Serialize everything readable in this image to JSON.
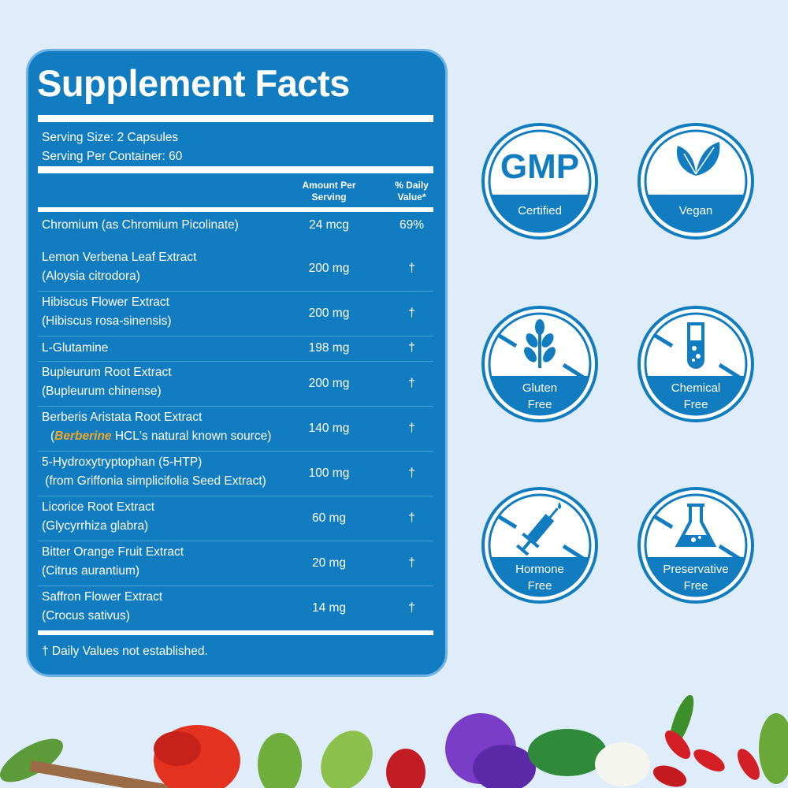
{
  "title": "Supplement Facts",
  "serving_size": "Serving Size: 2 Capsules",
  "servings_per_container": "Serving Per Container: 60",
  "headers": {
    "amount_line1": "Amount Per",
    "amount_line2": "Serving",
    "dv_line1": "% Daily",
    "dv_line2": "Value*"
  },
  "rows": [
    {
      "name": "Chromium (as Chromium Picolinate)",
      "amount": "24 mcg",
      "dv": "69%"
    },
    {
      "name": "Lemon Verbena Leaf Extract",
      "sub": "(Aloysia citrodora)",
      "amount": "200 mg",
      "dv": "†"
    },
    {
      "name": "Hibiscus Flower Extract",
      "sub": "(Hibiscus rosa-sinensis)",
      "amount": "200 mg",
      "dv": "†"
    },
    {
      "name": "L-Glutamine",
      "amount": "198 mg",
      "dv": "†"
    },
    {
      "name": "Bupleurum Root Extract",
      "sub": "(Bupleurum chinense)",
      "amount": "200 mg",
      "dv": "†"
    },
    {
      "name": "Berberis Aristata Root Extract",
      "sub_parts": [
        "(",
        "Berberine",
        " HCL's natural known source)"
      ],
      "amount": "140 mg",
      "dv": "†"
    },
    {
      "name": "5-Hydroxytryptophan (5-HTP)",
      "sub": " (from Griffonia simplicifolia Seed Extract)",
      "amount": "100 mg",
      "dv": "†"
    },
    {
      "name": "Licorice Root Extract",
      "sub": "(Glycyrrhiza glabra)",
      "amount": "60 mg",
      "dv": "†"
    },
    {
      "name": "Bitter Orange Fruit Extract",
      "sub": "(Citrus aurantium)",
      "amount": "20 mg",
      "dv": "†"
    },
    {
      "name": "Saffron Flower Extract",
      "sub": "(Crocus sativus)",
      "amount": "14 mg",
      "dv": "†"
    }
  ],
  "footnote": "† Daily Values not established.",
  "badges": [
    {
      "top": "GMP",
      "label": "Certified",
      "icon": "gmp-text"
    },
    {
      "label": "Vegan",
      "icon": "leaves-icon"
    },
    {
      "label1": "Gluten",
      "label2": "Free",
      "icon": "wheat-icon"
    },
    {
      "label1": "Chemical",
      "label2": "Free",
      "icon": "test-tube-icon"
    },
    {
      "label1": "Hormone",
      "label2": "Free",
      "icon": "syringe-icon"
    },
    {
      "label1": "Preservative",
      "label2": "Free",
      "icon": "flask-icon"
    }
  ],
  "colors": {
    "brand_blue": "#117cc0",
    "background": "#deedf9",
    "highlight": "#f5a623"
  }
}
